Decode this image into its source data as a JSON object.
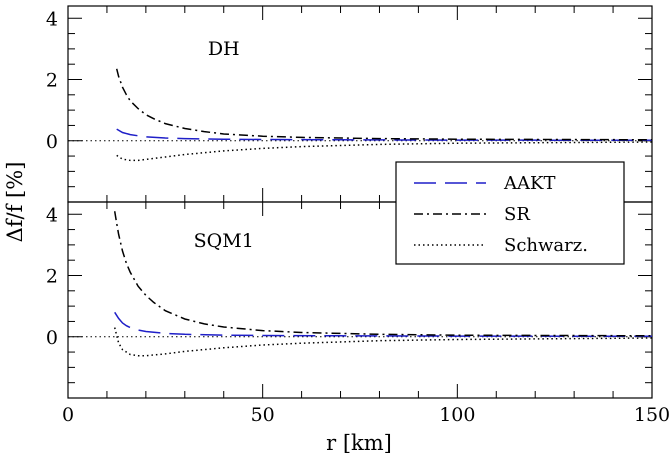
{
  "chart_data": {
    "type": "line",
    "xlabel": "r [km]",
    "ylabel": "Δf/f [%]",
    "xlim": [
      0,
      150
    ],
    "x_ticks": [
      0,
      50,
      100,
      150
    ],
    "legend": {
      "position": "right",
      "entries": [
        {
          "label": "AAKT",
          "color": "#1f1fc8",
          "style": "dashed"
        },
        {
          "label": "SR",
          "color": "#000000",
          "style": "dash-dot"
        },
        {
          "label": "Schwarz.",
          "color": "#000000",
          "style": "dotted"
        }
      ]
    },
    "panels": [
      {
        "label": "DH",
        "ylim": [
          -2,
          4.4
        ],
        "y_ticks": [
          0,
          2,
          4
        ],
        "series": [
          {
            "name": "AAKT",
            "color": "#1f1fc8",
            "style": "dashed",
            "x": [
              12.5,
              14,
              16,
              18,
              20,
              25,
              30,
              40,
              50,
              70,
              100,
              150
            ],
            "y": [
              0.38,
              0.27,
              0.2,
              0.16,
              0.13,
              0.09,
              0.07,
              0.05,
              0.04,
              0.03,
              0.02,
              0.015
            ]
          },
          {
            "name": "SR",
            "color": "#000000",
            "style": "dash-dot",
            "x": [
              12.5,
              13,
              14,
              15,
              16,
              18,
              20,
              22,
              25,
              30,
              35,
              40,
              50,
              60,
              80,
              100,
              150
            ],
            "y": [
              2.35,
              2.1,
              1.75,
              1.5,
              1.3,
              1.05,
              0.85,
              0.72,
              0.56,
              0.4,
              0.3,
              0.22,
              0.15,
              0.11,
              0.07,
              0.05,
              0.03
            ]
          },
          {
            "name": "Schwarz.",
            "color": "#000000",
            "style": "dotted",
            "x": [
              12.5,
              14,
              16,
              18,
              20,
              25,
              30,
              40,
              50,
              60,
              80,
              100,
              150
            ],
            "y": [
              -0.48,
              -0.6,
              -0.64,
              -0.64,
              -0.61,
              -0.53,
              -0.45,
              -0.33,
              -0.25,
              -0.19,
              -0.12,
              -0.08,
              -0.04
            ]
          }
        ]
      },
      {
        "label": "SQM1",
        "ylim": [
          -2,
          4.4
        ],
        "y_ticks": [
          0,
          2,
          4
        ],
        "series": [
          {
            "name": "AAKT",
            "color": "#1f1fc8",
            "style": "dashed",
            "x": [
              12,
              13,
              14,
              15,
              16,
              18,
              20,
              25,
              30,
              40,
              50,
              70,
              100,
              150
            ],
            "y": [
              0.8,
              0.6,
              0.45,
              0.36,
              0.3,
              0.22,
              0.17,
              0.11,
              0.08,
              0.05,
              0.04,
              0.03,
              0.02,
              0.015
            ]
          },
          {
            "name": "SR",
            "color": "#000000",
            "style": "dash-dot",
            "x": [
              12,
              12.5,
              13,
              14,
              15,
              16,
              18,
              20,
              22,
              25,
              30,
              35,
              40,
              50,
              60,
              80,
              100,
              150
            ],
            "y": [
              4.1,
              3.7,
              3.35,
              2.8,
              2.4,
              2.1,
              1.65,
              1.35,
              1.12,
              0.85,
              0.58,
              0.42,
              0.32,
              0.2,
              0.14,
              0.08,
              0.05,
              0.03
            ]
          },
          {
            "name": "Schwarz.",
            "color": "#000000",
            "style": "dotted",
            "x": [
              12,
              13,
              14,
              16,
              18,
              20,
              25,
              30,
              40,
              50,
              60,
              80,
              100,
              150
            ],
            "y": [
              0.3,
              -0.2,
              -0.42,
              -0.58,
              -0.62,
              -0.62,
              -0.56,
              -0.48,
              -0.36,
              -0.27,
              -0.21,
              -0.13,
              -0.09,
              -0.04
            ]
          }
        ]
      }
    ]
  }
}
